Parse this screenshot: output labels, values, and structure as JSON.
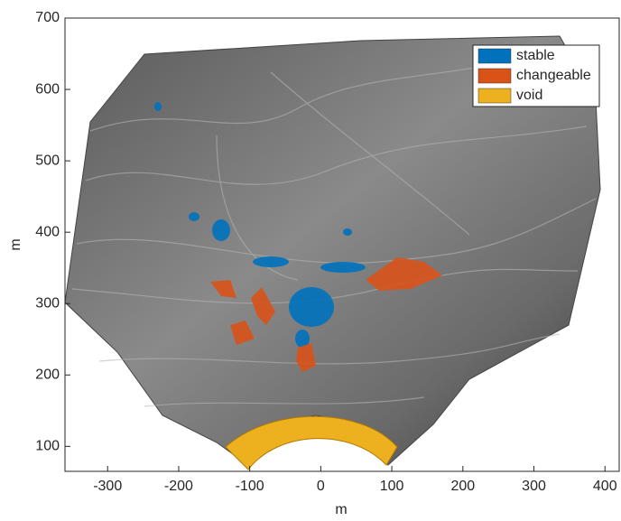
{
  "chart_data": {
    "type": "image",
    "xlabel": "m",
    "ylabel": "m",
    "xlim": [
      -360,
      420
    ],
    "ylim": [
      65,
      700
    ],
    "xticks": [
      -300,
      -200,
      -100,
      0,
      100,
      200,
      300,
      400
    ],
    "yticks": [
      100,
      200,
      300,
      400,
      500,
      600,
      700
    ],
    "legend": "upper right",
    "series": [
      {
        "name": "stable",
        "color": "#0072bd"
      },
      {
        "name": "changeable",
        "color": "#d95319"
      },
      {
        "name": "void",
        "color": "#edb120"
      }
    ]
  }
}
